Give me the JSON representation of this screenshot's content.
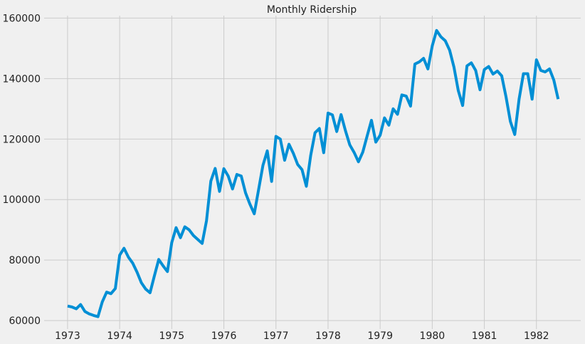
{
  "chart_data": {
    "type": "line",
    "title": "Monthly Ridership",
    "xlabel": "",
    "ylabel": "",
    "xlim": [
      1972.55,
      1982.85
    ],
    "ylim": [
      57200,
      160800
    ],
    "x_ticks": [
      "1973",
      "1974",
      "1975",
      "1976",
      "1977",
      "1978",
      "1979",
      "1980",
      "1981",
      "1982"
    ],
    "y_ticks": [
      "60000",
      "80000",
      "100000",
      "120000",
      "140000",
      "160000"
    ],
    "grid": true,
    "legend": "none",
    "colors": {
      "line": "#008fd5",
      "grid": "#cbcbcb",
      "background": "#f0f0f0"
    },
    "series": [
      {
        "x": [
          "1973-01",
          "1973-02",
          "1973-03",
          "1973-04",
          "1973-05",
          "1973-06",
          "1973-07",
          "1973-08",
          "1973-09",
          "1973-10",
          "1973-11",
          "1973-12",
          "1974-01",
          "1974-02",
          "1974-03",
          "1974-04",
          "1974-05",
          "1974-06",
          "1974-07",
          "1974-08",
          "1974-09",
          "1974-10",
          "1974-11",
          "1974-12",
          "1975-01",
          "1975-02",
          "1975-03",
          "1975-04",
          "1975-05",
          "1975-06",
          "1975-07",
          "1975-08",
          "1975-09",
          "1975-10",
          "1975-11",
          "1975-12",
          "1976-01",
          "1976-02",
          "1976-03",
          "1976-04",
          "1976-05",
          "1976-06",
          "1976-07",
          "1976-08",
          "1976-09",
          "1976-10",
          "1976-11",
          "1976-12",
          "1977-01",
          "1977-02",
          "1977-03",
          "1977-04",
          "1977-05",
          "1977-06",
          "1977-07",
          "1977-08",
          "1977-09",
          "1977-10",
          "1977-11",
          "1977-12",
          "1978-01",
          "1978-02",
          "1978-03",
          "1978-04",
          "1978-05",
          "1978-06",
          "1978-07",
          "1978-08",
          "1978-09",
          "1978-10",
          "1978-11",
          "1978-12",
          "1979-01",
          "1979-02",
          "1979-03",
          "1979-04",
          "1979-05",
          "1979-06",
          "1979-07",
          "1979-08",
          "1979-09",
          "1979-10",
          "1979-11",
          "1979-12",
          "1980-01",
          "1980-02",
          "1980-03",
          "1980-04",
          "1980-05",
          "1980-06",
          "1980-07",
          "1980-08",
          "1980-09",
          "1980-10",
          "1980-11",
          "1980-12",
          "1981-01",
          "1981-02",
          "1981-03",
          "1981-04",
          "1981-05",
          "1981-06",
          "1981-07",
          "1981-08",
          "1981-09",
          "1981-10",
          "1981-11",
          "1981-12",
          "1982-01",
          "1982-02",
          "1982-03",
          "1982-04",
          "1982-05",
          "1982-06"
        ],
        "values": [
          64800,
          64500,
          63900,
          65300,
          63000,
          62200,
          61700,
          61300,
          66200,
          69400,
          68900,
          70600,
          81600,
          83900,
          81000,
          79000,
          76000,
          72500,
          70400,
          69200,
          74800,
          80200,
          78100,
          76200,
          85800,
          90700,
          87400,
          91000,
          90000,
          88100,
          86800,
          85500,
          93000,
          106100,
          110300,
          102700,
          110200,
          107800,
          103500,
          108300,
          107800,
          102200,
          98500,
          95300,
          103300,
          111300,
          116100,
          106000,
          120900,
          120000,
          113000,
          118300,
          115300,
          111600,
          109900,
          104400,
          114600,
          122100,
          123500,
          115500,
          128600,
          128000,
          122500,
          128100,
          122800,
          118100,
          115600,
          112500,
          115700,
          121000,
          126200,
          119000,
          121300,
          127000,
          124600,
          130000,
          128200,
          134600,
          134200,
          130900,
          144800,
          145500,
          146700,
          143200,
          150800,
          155900,
          153800,
          152500,
          149400,
          143800,
          136000,
          131100,
          144200,
          145200,
          142700,
          136300,
          143000,
          144000,
          141500,
          142500,
          140900,
          133900,
          125800,
          121500,
          133200,
          141600,
          141600,
          133200,
          146200,
          142700,
          142200,
          143200,
          139500,
          133200
        ]
      }
    ]
  }
}
